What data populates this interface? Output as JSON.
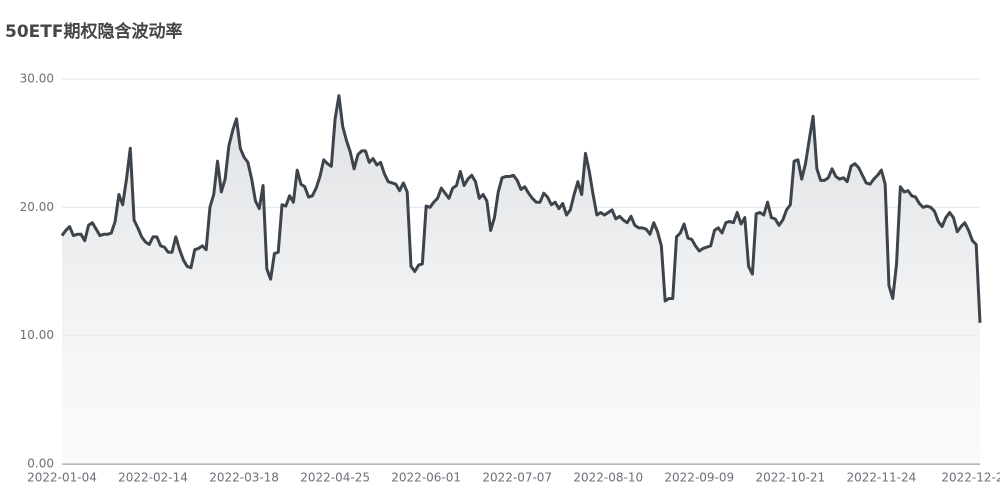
{
  "chart_data": {
    "type": "line",
    "title": "50ETF期权隐含波动率",
    "color": "#3d444c",
    "grid": true,
    "area": true,
    "ylim": [
      0,
      30
    ],
    "yticks": [
      {
        "value": 0,
        "label": "0.00"
      },
      {
        "value": 10,
        "label": "10.00"
      },
      {
        "value": 20,
        "label": "20.00"
      },
      {
        "value": 30,
        "label": "30.00"
      }
    ],
    "categories": [
      "2022-01-04",
      null,
      null,
      null,
      null,
      null,
      null,
      null,
      null,
      null,
      null,
      null,
      null,
      null,
      null,
      null,
      null,
      null,
      null,
      null,
      null,
      null,
      null,
      null,
      "2022-02-14",
      null,
      null,
      null,
      null,
      null,
      null,
      null,
      null,
      null,
      null,
      null,
      null,
      null,
      null,
      null,
      null,
      null,
      null,
      null,
      null,
      null,
      null,
      null,
      "2022-03-18",
      null,
      null,
      null,
      null,
      null,
      null,
      null,
      null,
      null,
      null,
      null,
      null,
      null,
      null,
      null,
      null,
      null,
      null,
      null,
      null,
      null,
      null,
      null,
      "2022-04-25",
      null,
      null,
      null,
      null,
      null,
      null,
      null,
      null,
      null,
      null,
      null,
      null,
      null,
      null,
      null,
      null,
      null,
      null,
      null,
      null,
      null,
      null,
      null,
      "2022-06-01",
      null,
      null,
      null,
      null,
      null,
      null,
      null,
      null,
      null,
      null,
      null,
      null,
      null,
      null,
      null,
      null,
      null,
      null,
      null,
      null,
      null,
      null,
      null,
      "2022-07-07",
      null,
      null,
      null,
      null,
      null,
      null,
      null,
      null,
      null,
      null,
      null,
      null,
      null,
      null,
      null,
      null,
      null,
      null,
      null,
      null,
      null,
      null,
      null,
      "2022-08-10",
      null,
      null,
      null,
      null,
      null,
      null,
      null,
      null,
      null,
      null,
      null,
      null,
      null,
      null,
      null,
      null,
      null,
      null,
      null,
      null,
      null,
      null,
      null,
      "2022-09-09",
      null,
      null,
      null,
      null,
      null,
      null,
      null,
      null,
      null,
      null,
      null,
      null,
      null,
      null,
      null,
      null,
      null,
      null,
      null,
      null,
      null,
      null,
      null,
      "2022-10-21",
      null,
      null,
      null,
      null,
      null,
      null,
      null,
      null,
      null,
      null,
      null,
      null,
      null,
      null,
      null,
      null,
      null,
      null,
      null,
      null,
      null,
      null,
      null,
      "2022-11-24",
      null,
      null,
      null,
      null,
      null,
      null,
      null,
      null,
      null,
      null,
      null,
      null,
      null,
      null,
      null,
      null,
      null,
      null,
      null,
      null,
      null,
      null,
      null,
      "2022-12-2",
      null,
      null
    ],
    "values": [
      17.8,
      18.2,
      18.5,
      17.8,
      17.9,
      17.9,
      17.4,
      18.6,
      18.8,
      18.3,
      17.8,
      17.9,
      17.9,
      18.0,
      18.9,
      21.0,
      20.2,
      22.2,
      24.6,
      19.0,
      18.4,
      17.7,
      17.3,
      17.1,
      17.7,
      17.7,
      17.0,
      16.9,
      16.5,
      16.5,
      17.7,
      16.7,
      15.9,
      15.4,
      15.3,
      16.7,
      16.8,
      17.0,
      16.7,
      20.0,
      21.0,
      23.6,
      21.2,
      22.2,
      24.8,
      26.0,
      26.9,
      24.6,
      23.9,
      23.5,
      22.2,
      20.5,
      19.9,
      21.7,
      15.2,
      14.4,
      16.4,
      16.5,
      20.2,
      20.1,
      20.9,
      20.4,
      22.9,
      21.8,
      21.6,
      20.8,
      20.9,
      21.5,
      22.4,
      23.7,
      23.4,
      23.2,
      26.9,
      28.7,
      26.3,
      25.2,
      24.3,
      23.0,
      24.1,
      24.4,
      24.4,
      23.5,
      23.8,
      23.3,
      23.5,
      22.6,
      22.0,
      21.9,
      21.8,
      21.3,
      21.9,
      21.2,
      15.4,
      15.0,
      15.5,
      15.6,
      20.1,
      20.0,
      20.4,
      20.7,
      21.5,
      21.1,
      20.7,
      21.5,
      21.7,
      22.8,
      21.7,
      22.2,
      22.5,
      22.0,
      20.7,
      21.0,
      20.5,
      18.2,
      19.2,
      21.2,
      22.3,
      22.4,
      22.4,
      22.5,
      22.1,
      21.4,
      21.6,
      21.1,
      20.7,
      20.4,
      20.4,
      21.1,
      20.8,
      20.2,
      20.4,
      19.9,
      20.3,
      19.4,
      19.8,
      21.0,
      22.0,
      21.0,
      24.2,
      22.8,
      21.0,
      19.4,
      19.6,
      19.4,
      19.6,
      19.8,
      19.1,
      19.3,
      19.0,
      18.8,
      19.3,
      18.6,
      18.4,
      18.4,
      18.3,
      17.9,
      18.8,
      18.1,
      17.0,
      12.7,
      12.9,
      12.9,
      17.7,
      18.0,
      18.7,
      17.6,
      17.5,
      17.0,
      16.6,
      16.8,
      16.9,
      17.0,
      18.2,
      18.4,
      18.0,
      18.8,
      18.9,
      18.8,
      19.6,
      18.7,
      19.2,
      15.4,
      14.8,
      19.5,
      19.6,
      19.4,
      20.4,
      19.2,
      19.1,
      18.6,
      19.0,
      19.8,
      20.2,
      23.6,
      23.7,
      22.2,
      23.4,
      25.3,
      27.1,
      23.0,
      22.1,
      22.1,
      22.3,
      23.0,
      22.4,
      22.2,
      22.3,
      22.0,
      23.2,
      23.4,
      23.1,
      22.5,
      21.9,
      21.8,
      22.2,
      22.5,
      22.9,
      21.8,
      13.9,
      12.9,
      15.6,
      21.6,
      21.2,
      21.3,
      20.9,
      20.8,
      20.3,
      20.0,
      20.1,
      20.0,
      19.7,
      18.9,
      18.5,
      19.2,
      19.6,
      19.2,
      18.1,
      18.5,
      18.8,
      18.2,
      17.4,
      17.1,
      11.0
    ]
  }
}
